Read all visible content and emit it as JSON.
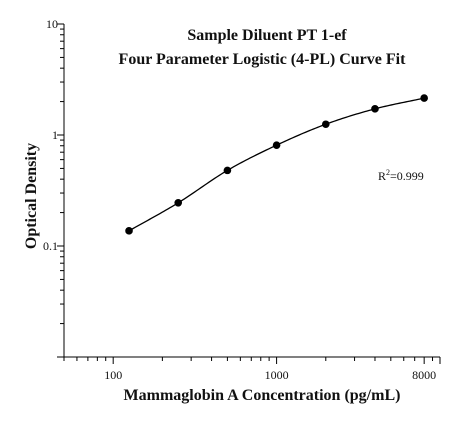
{
  "chart_data": {
    "type": "scatter",
    "title": [
      "Sample Diluent PT 1-ef",
      "Four Parameter Logistic (4-PL) Curve Fit"
    ],
    "xlabel": "Mammaglobin A Concentration (pg/mL)",
    "ylabel": "Optical Density",
    "x_scale": "log",
    "y_scale": "log",
    "xlim": [
      50,
      10000
    ],
    "ylim": [
      0.01,
      10
    ],
    "x_ticks": [
      {
        "value": 100,
        "label": "100"
      },
      {
        "value": 1000,
        "label": "1000"
      },
      {
        "value": 8000,
        "label": "8000"
      }
    ],
    "y_ticks": [
      {
        "value": 0.1,
        "label": "0.1"
      },
      {
        "value": 1,
        "label": "1"
      },
      {
        "value": 10,
        "label": "10"
      }
    ],
    "series": [
      {
        "x": [
          125,
          250,
          500,
          1000,
          2000,
          4000,
          8000
        ],
        "y": [
          0.137,
          0.245,
          0.48,
          0.81,
          1.25,
          1.72,
          2.15
        ],
        "color": "#000000"
      }
    ],
    "annotations": [
      {
        "text_base": "R",
        "text_sup": "2",
        "text_rest": "=0.999"
      }
    ],
    "legend": "none",
    "grid": false
  }
}
